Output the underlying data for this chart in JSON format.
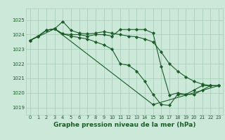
{
  "background_color": "#cce8d8",
  "grid_color": "#aacfbc",
  "line_color": "#1a5c28",
  "marker_color": "#1a5c28",
  "xlabel": "Graphe pression niveau de la mer (hPa)",
  "xlabel_fontsize": 6.5,
  "xlim": [
    -0.5,
    23.5
  ],
  "ylim": [
    1018.5,
    1025.8
  ],
  "yticks": [
    1019,
    1020,
    1021,
    1022,
    1023,
    1024,
    1025
  ],
  "xticks": [
    0,
    1,
    2,
    3,
    4,
    5,
    6,
    7,
    8,
    9,
    10,
    11,
    12,
    13,
    14,
    15,
    16,
    17,
    18,
    19,
    20,
    21,
    22,
    23
  ],
  "series": [
    {
      "x": [
        0,
        1,
        2,
        3,
        4,
        5,
        6,
        7,
        8,
        9,
        10,
        11,
        12,
        13,
        14,
        15,
        16,
        17,
        18,
        19,
        20,
        21,
        22,
        23
      ],
      "y": [
        1023.6,
        1023.9,
        1024.3,
        1024.4,
        1024.05,
        1024.0,
        1024.0,
        1023.9,
        1024.0,
        1024.0,
        1023.9,
        1024.35,
        1024.35,
        1024.35,
        1024.35,
        1024.1,
        1021.8,
        1019.85,
        1020.0,
        1019.9,
        1019.9,
        1020.2,
        1020.5,
        1020.5
      ]
    },
    {
      "x": [
        0,
        1,
        2,
        3,
        4,
        5,
        6,
        7,
        8,
        9,
        10,
        11,
        12,
        13,
        14,
        15,
        16,
        17,
        18,
        19,
        20,
        21,
        22,
        23
      ],
      "y": [
        1023.6,
        1023.9,
        1024.3,
        1024.4,
        1024.9,
        1024.3,
        1024.1,
        1024.05,
        1024.1,
        1024.2,
        1024.1,
        1024.0,
        1023.9,
        1023.85,
        1023.7,
        1023.5,
        1022.8,
        1022.0,
        1021.5,
        1021.1,
        1020.8,
        1020.6,
        1020.5,
        1020.5
      ]
    },
    {
      "x": [
        0,
        3,
        15,
        23
      ],
      "y": [
        1023.6,
        1024.4,
        1019.2,
        1020.5
      ]
    },
    {
      "x": [
        0,
        1,
        2,
        3,
        4,
        5,
        6,
        7,
        8,
        9,
        10,
        11,
        12,
        13,
        14,
        15,
        16,
        17,
        18,
        19,
        20,
        21,
        22,
        23
      ],
      "y": [
        1023.6,
        1023.9,
        1024.3,
        1024.4,
        1024.05,
        1023.9,
        1023.8,
        1023.7,
        1023.5,
        1023.3,
        1023.0,
        1022.0,
        1021.9,
        1021.5,
        1020.8,
        1019.9,
        1019.2,
        1019.15,
        1019.9,
        1019.9,
        1020.2,
        1020.5,
        1020.5,
        1020.5
      ]
    }
  ]
}
